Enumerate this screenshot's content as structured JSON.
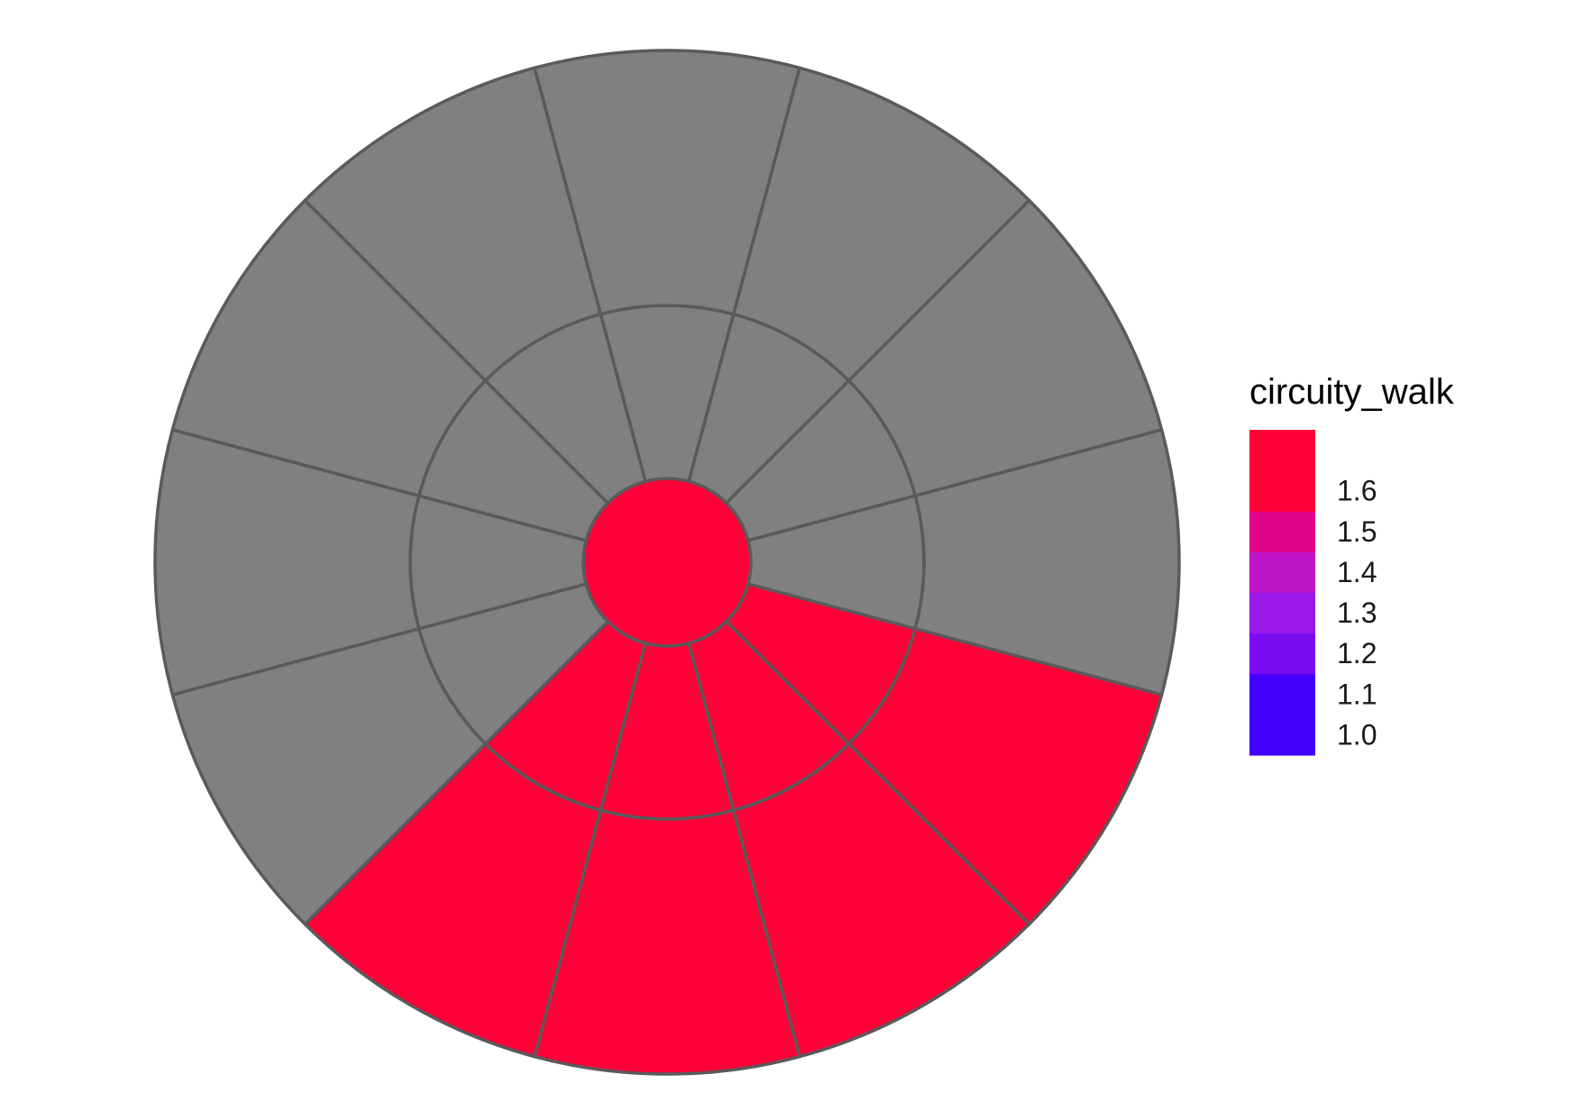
{
  "chart_data": {
    "type": "polar-heatmap",
    "rings": 3,
    "sectors": 12,
    "fill_variable": "circuity_walk",
    "cells": [
      {
        "ring": 0,
        "sector": 0,
        "value": 1.65
      },
      {
        "ring": 1,
        "sector": 0,
        "value": null
      },
      {
        "ring": 1,
        "sector": 1,
        "value": null
      },
      {
        "ring": 1,
        "sector": 2,
        "value": null
      },
      {
        "ring": 1,
        "sector": 3,
        "value": null
      },
      {
        "ring": 1,
        "sector": 4,
        "value": 1.65
      },
      {
        "ring": 1,
        "sector": 5,
        "value": 1.65
      },
      {
        "ring": 1,
        "sector": 6,
        "value": 1.65
      },
      {
        "ring": 1,
        "sector": 7,
        "value": 1.65
      },
      {
        "ring": 1,
        "sector": 8,
        "value": null
      },
      {
        "ring": 1,
        "sector": 9,
        "value": null
      },
      {
        "ring": 1,
        "sector": 10,
        "value": null
      },
      {
        "ring": 1,
        "sector": 11,
        "value": null
      },
      {
        "ring": 2,
        "sector": 0,
        "value": null
      },
      {
        "ring": 2,
        "sector": 1,
        "value": null
      },
      {
        "ring": 2,
        "sector": 2,
        "value": null
      },
      {
        "ring": 2,
        "sector": 3,
        "value": null
      },
      {
        "ring": 2,
        "sector": 4,
        "value": 1.65
      },
      {
        "ring": 2,
        "sector": 5,
        "value": 1.65
      },
      {
        "ring": 2,
        "sector": 6,
        "value": 1.65
      },
      {
        "ring": 2,
        "sector": 7,
        "value": 1.65
      },
      {
        "ring": 2,
        "sector": 8,
        "value": null
      },
      {
        "ring": 2,
        "sector": 9,
        "value": null
      },
      {
        "ring": 2,
        "sector": 10,
        "value": null
      },
      {
        "ring": 2,
        "sector": 11,
        "value": null
      }
    ],
    "legend": {
      "title": "circuity_walk",
      "placement": "right",
      "labels": [
        "1.6",
        "1.5",
        "1.4",
        "1.3",
        "1.2",
        "1.1",
        "1.0"
      ],
      "label_values": [
        1.6,
        1.5,
        1.4,
        1.3,
        1.2,
        1.1,
        1.0
      ],
      "range": [
        0.95,
        1.75
      ],
      "steps": [
        {
          "from": 0.95,
          "to": 1.15,
          "color": "#4400ff"
        },
        {
          "from": 1.15,
          "to": 1.25,
          "color": "#7a0cf2"
        },
        {
          "from": 1.25,
          "to": 1.35,
          "color": "#9a19e8"
        },
        {
          "from": 1.35,
          "to": 1.45,
          "color": "#c015c8"
        },
        {
          "from": 1.45,
          "to": 1.55,
          "color": "#e0058a"
        },
        {
          "from": 1.55,
          "to": 1.75,
          "color": "#ff0038"
        }
      ]
    },
    "colors": {
      "na": "#808080",
      "stroke": "#5a5a5a",
      "background": "#ffffff"
    }
  }
}
